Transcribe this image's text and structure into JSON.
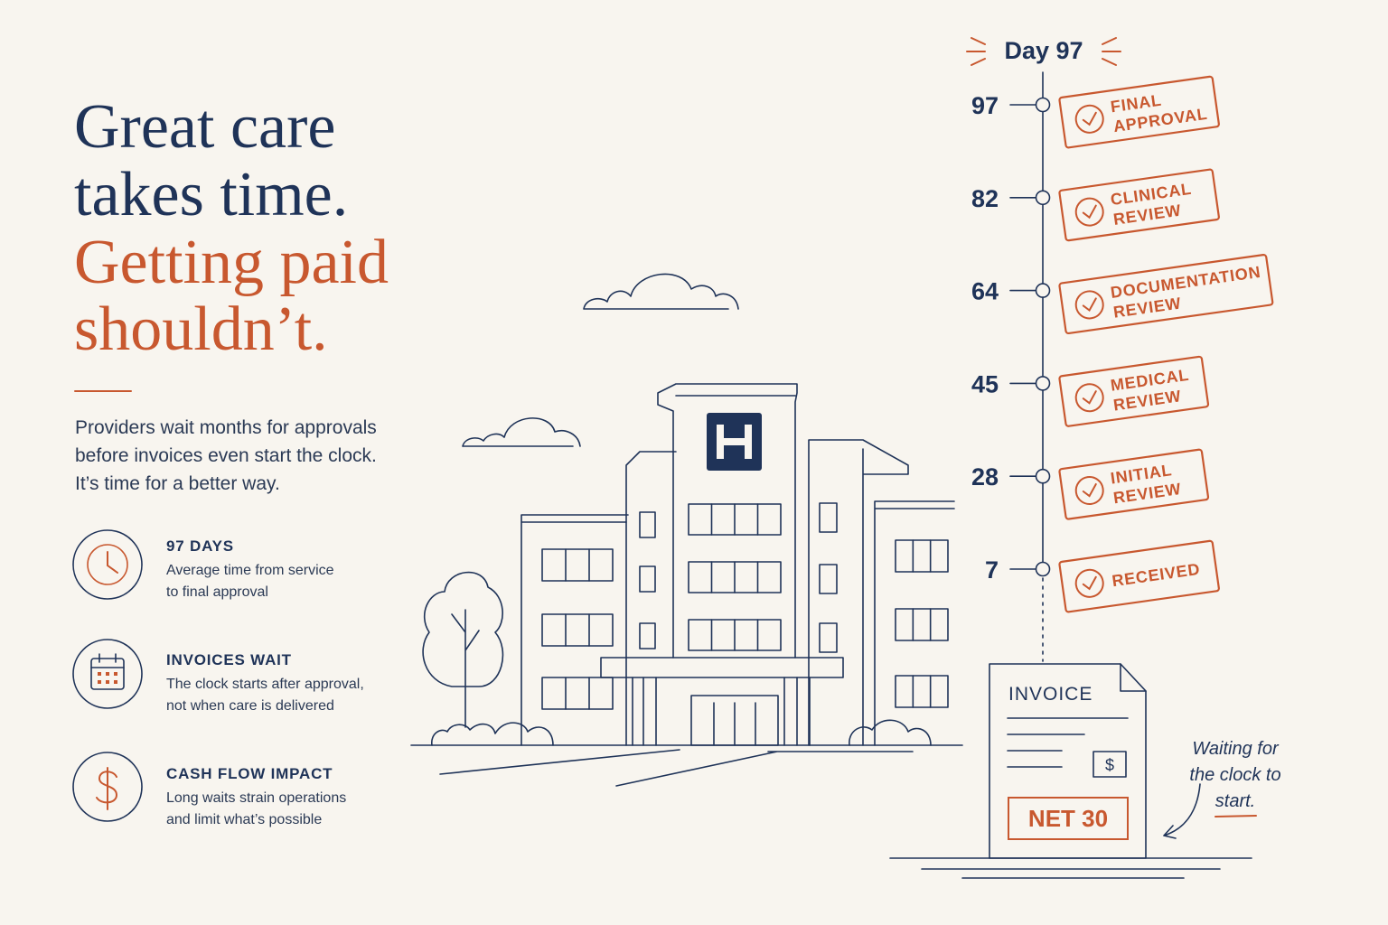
{
  "headline": [
    "Great care",
    "takes time.",
    "Getting paid",
    "shouldn’t."
  ],
  "intro": [
    "Providers wait months for approvals",
    "before invoices even start the clock.",
    "It’s time for a better way."
  ],
  "features": [
    {
      "title": "97 DAYS",
      "text": [
        "Average time from service",
        "to final approval"
      ]
    },
    {
      "title": "INVOICES WAIT",
      "text": [
        "The clock starts after approval,",
        "not when care is delivered"
      ]
    },
    {
      "title": "CASH FLOW IMPACT",
      "text": [
        "Long waits strain operations",
        "and limit what’s possible"
      ]
    }
  ],
  "timeline": {
    "current": "Day 97",
    "steps": [
      {
        "day": 97,
        "label": [
          "FINAL",
          "APPROVAL"
        ]
      },
      {
        "day": 82,
        "label": [
          "CLINICAL",
          "REVIEW"
        ]
      },
      {
        "day": 64,
        "label": [
          "DOCUMENTATION",
          "REVIEW"
        ]
      },
      {
        "day": 45,
        "label": [
          "MEDICAL",
          "REVIEW"
        ]
      },
      {
        "day": 28,
        "label": [
          "INITIAL",
          "REVIEW"
        ]
      },
      {
        "day": 7,
        "label": [
          "RECEIVED"
        ]
      }
    ]
  },
  "invoice": {
    "title": "INVOICE",
    "currency": "$",
    "terms": "NET 30"
  },
  "note": [
    "Waiting for",
    "the clock to",
    "start."
  ]
}
